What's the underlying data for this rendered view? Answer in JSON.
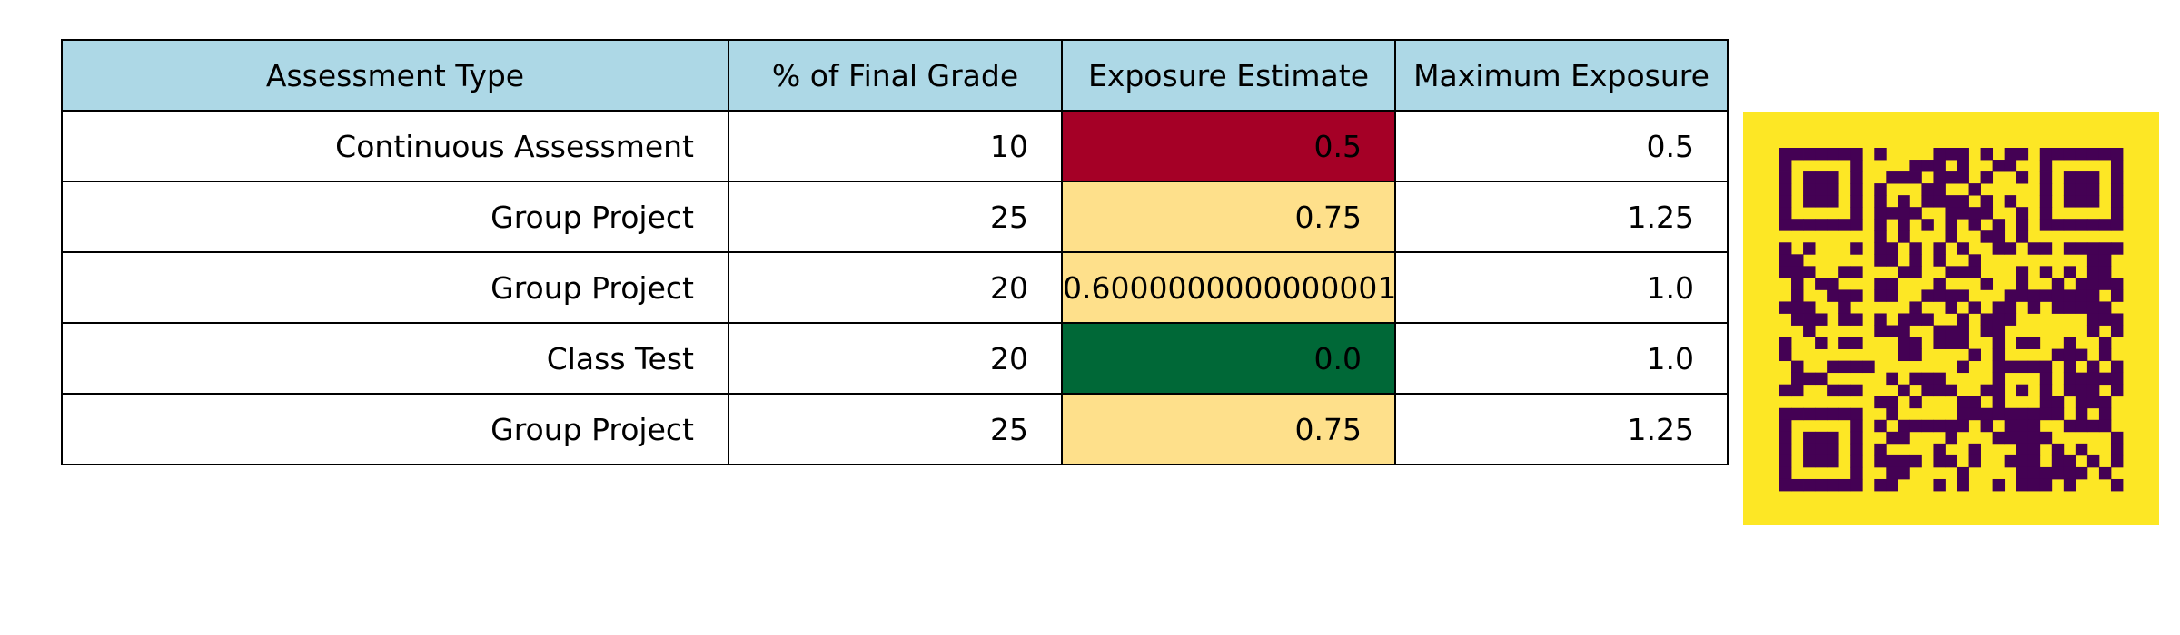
{
  "chart_data": {
    "type": "table",
    "columns": [
      "Assessment Type",
      "% of Final Grade",
      "Exposure Estimate",
      "Maximum Exposure"
    ],
    "rows": [
      [
        "Continuous Assessment",
        "10",
        "0.5",
        "0.5"
      ],
      [
        "Group Project",
        "25",
        "0.75",
        "1.25"
      ],
      [
        "Group Project",
        "20",
        "0.6000000000000001",
        "1.0"
      ],
      [
        "Class Test",
        "20",
        "0.0",
        "1.0"
      ],
      [
        "Group Project",
        "25",
        "0.75",
        "1.25"
      ]
    ],
    "exposure_cell_colors": [
      "#a50026",
      "#fee08b",
      "#fee08b",
      "#006837",
      "#fee08b"
    ],
    "header_color": "#add8e6",
    "grid": true
  },
  "qr_code": {
    "background": "#fde725",
    "module_color": "#440154",
    "modules": 29
  }
}
